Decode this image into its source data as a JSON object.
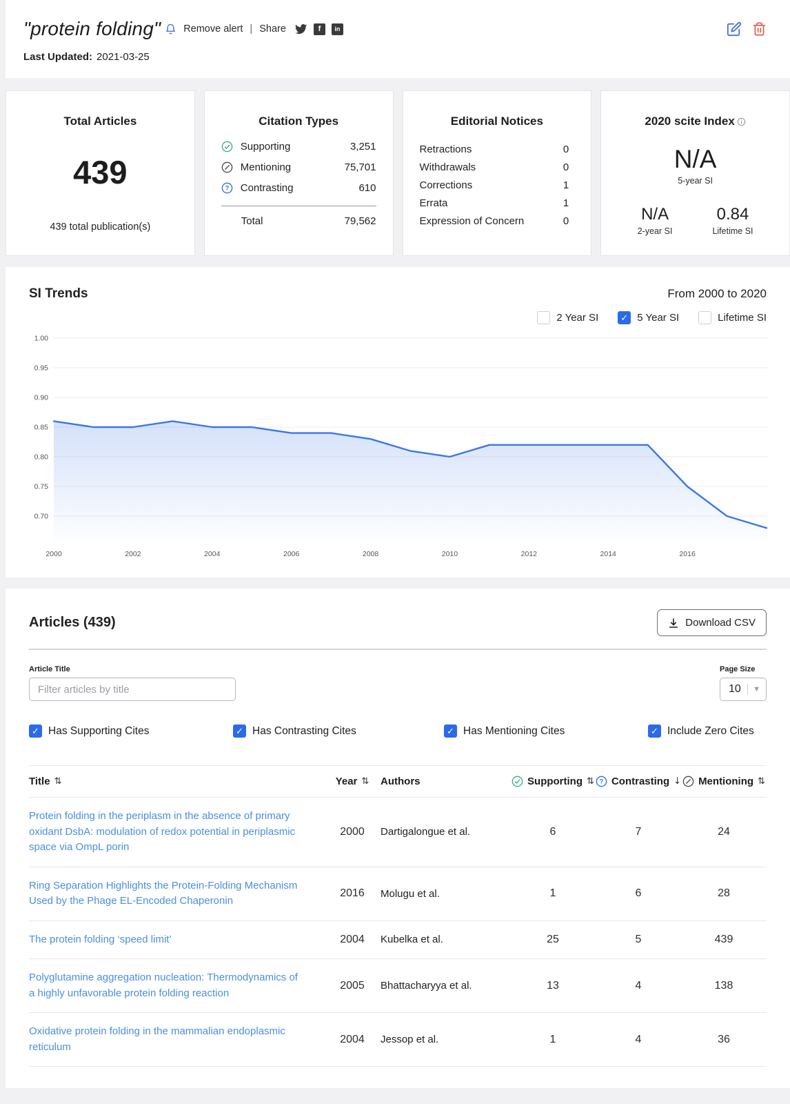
{
  "header": {
    "title": "\"protein folding\"",
    "remove_alert_label": "Remove alert",
    "pipe": "|",
    "share_label": "Share",
    "facebook_glyph": "f",
    "linkedin_glyph": "in",
    "last_updated_label": "Last Updated:",
    "last_updated_value": "2021-03-25"
  },
  "cards": {
    "total_articles": {
      "title": "Total Articles",
      "value": "439",
      "subtitle": "439 total publication(s)"
    },
    "citation_types": {
      "title": "Citation Types",
      "rows": [
        {
          "icon": "supporting",
          "label": "Supporting",
          "value": "3,251"
        },
        {
          "icon": "mentioning",
          "label": "Mentioning",
          "value": "75,701"
        },
        {
          "icon": "contrasting",
          "label": "Contrasting",
          "value": "610"
        }
      ],
      "total_label": "Total",
      "total_value": "79,562"
    },
    "editorial_notices": {
      "title": "Editorial Notices",
      "rows": [
        {
          "label": "Retractions",
          "value": "0"
        },
        {
          "label": "Withdrawals",
          "value": "0"
        },
        {
          "label": "Corrections",
          "value": "1"
        },
        {
          "label": "Errata",
          "value": "1"
        },
        {
          "label": "Expression of Concern",
          "value": "0"
        }
      ]
    },
    "scite_index": {
      "title": "2020 scite Index",
      "primary_value": "N/A",
      "primary_label": "5-year SI",
      "secondary": [
        {
          "value": "N/A",
          "label": "2-year SI"
        },
        {
          "value": "0.84",
          "label": "Lifetime SI"
        }
      ]
    }
  },
  "trends": {
    "title": "SI Trends",
    "range_label": "From 2000 to 2020",
    "checkboxes": [
      {
        "label": "2 Year SI",
        "checked": false
      },
      {
        "label": "5 Year SI",
        "checked": true
      },
      {
        "label": "Lifetime SI",
        "checked": false
      }
    ]
  },
  "chart_data": {
    "type": "area",
    "title": "SI Trends",
    "x": [
      2000,
      2001,
      2002,
      2003,
      2004,
      2005,
      2006,
      2007,
      2008,
      2009,
      2010,
      2011,
      2012,
      2013,
      2014,
      2015,
      2016,
      2017,
      2018
    ],
    "series": [
      {
        "name": "5 Year SI",
        "values": [
          0.86,
          0.85,
          0.85,
          0.86,
          0.85,
          0.85,
          0.84,
          0.84,
          0.83,
          0.81,
          0.8,
          0.82,
          0.82,
          0.82,
          0.82,
          0.82,
          0.75,
          0.7,
          0.68
        ]
      }
    ],
    "xlim": [
      2000,
      2018
    ],
    "ylim": [
      0.66,
      1.0
    ],
    "y_ticks": [
      1.0,
      0.95,
      0.9,
      0.85,
      0.8,
      0.75,
      0.7
    ],
    "x_ticks": [
      2000,
      2002,
      2004,
      2006,
      2008,
      2010,
      2012,
      2014,
      2016
    ],
    "grid": true,
    "legend_position": "none",
    "line_color": "#3b77e8",
    "fill_color": "#3b77e8",
    "grid_color": "#ededf0"
  },
  "articles": {
    "title": "Articles (439)",
    "download_csv_label": "Download CSV",
    "filter_label": "Article Title",
    "filter_placeholder": "Filter articles by title",
    "page_size_label": "Page Size",
    "page_size_value": "10",
    "filters": [
      {
        "label": "Has Supporting Cites",
        "checked": true
      },
      {
        "label": "Has Contrasting Cites",
        "checked": true
      },
      {
        "label": "Has Mentioning Cites",
        "checked": true
      },
      {
        "label": "Include Zero Cites",
        "checked": true
      }
    ],
    "table": {
      "columns": [
        {
          "label": "Title",
          "icon": null,
          "sort": "both",
          "align": "left"
        },
        {
          "label": "Year",
          "icon": null,
          "sort": "both",
          "align": "center"
        },
        {
          "label": "Authors",
          "icon": null,
          "sort": "none",
          "align": "left"
        },
        {
          "label": "Supporting",
          "icon": "supporting",
          "sort": "both",
          "align": "center"
        },
        {
          "label": "Contrasting",
          "icon": "contrasting",
          "sort": "desc",
          "align": "center"
        },
        {
          "label": "Mentioning",
          "icon": "mentioning",
          "sort": "both",
          "align": "center"
        }
      ],
      "rows": [
        {
          "title": "Protein folding in the periplasm in the absence of primary oxidant DsbA: modulation of redox potential in periplasmic space via OmpL porin",
          "year": "2000",
          "authors": "Dartigalongue et al.",
          "supporting": "6",
          "contrasting": "7",
          "mentioning": "24"
        },
        {
          "title": "Ring Separation Highlights the Protein-Folding Mechanism Used by the Phage EL-Encoded Chaperonin",
          "year": "2016",
          "authors": "Molugu et al.",
          "supporting": "1",
          "contrasting": "6",
          "mentioning": "28"
        },
        {
          "title": "The protein folding ‘speed limit’",
          "year": "2004",
          "authors": "Kubelka et al.",
          "supporting": "25",
          "contrasting": "5",
          "mentioning": "439"
        },
        {
          "title": "Polyglutamine aggregation nucleation: Thermodynamics of a highly unfavorable protein folding reaction",
          "year": "2005",
          "authors": "Bhattacharyya et al.",
          "supporting": "13",
          "contrasting": "4",
          "mentioning": "138"
        },
        {
          "title": "Oxidative protein folding in the mammalian endoplasmic reticulum",
          "year": "2004",
          "authors": "Jessop et al.",
          "supporting": "1",
          "contrasting": "4",
          "mentioning": "36"
        }
      ]
    }
  }
}
